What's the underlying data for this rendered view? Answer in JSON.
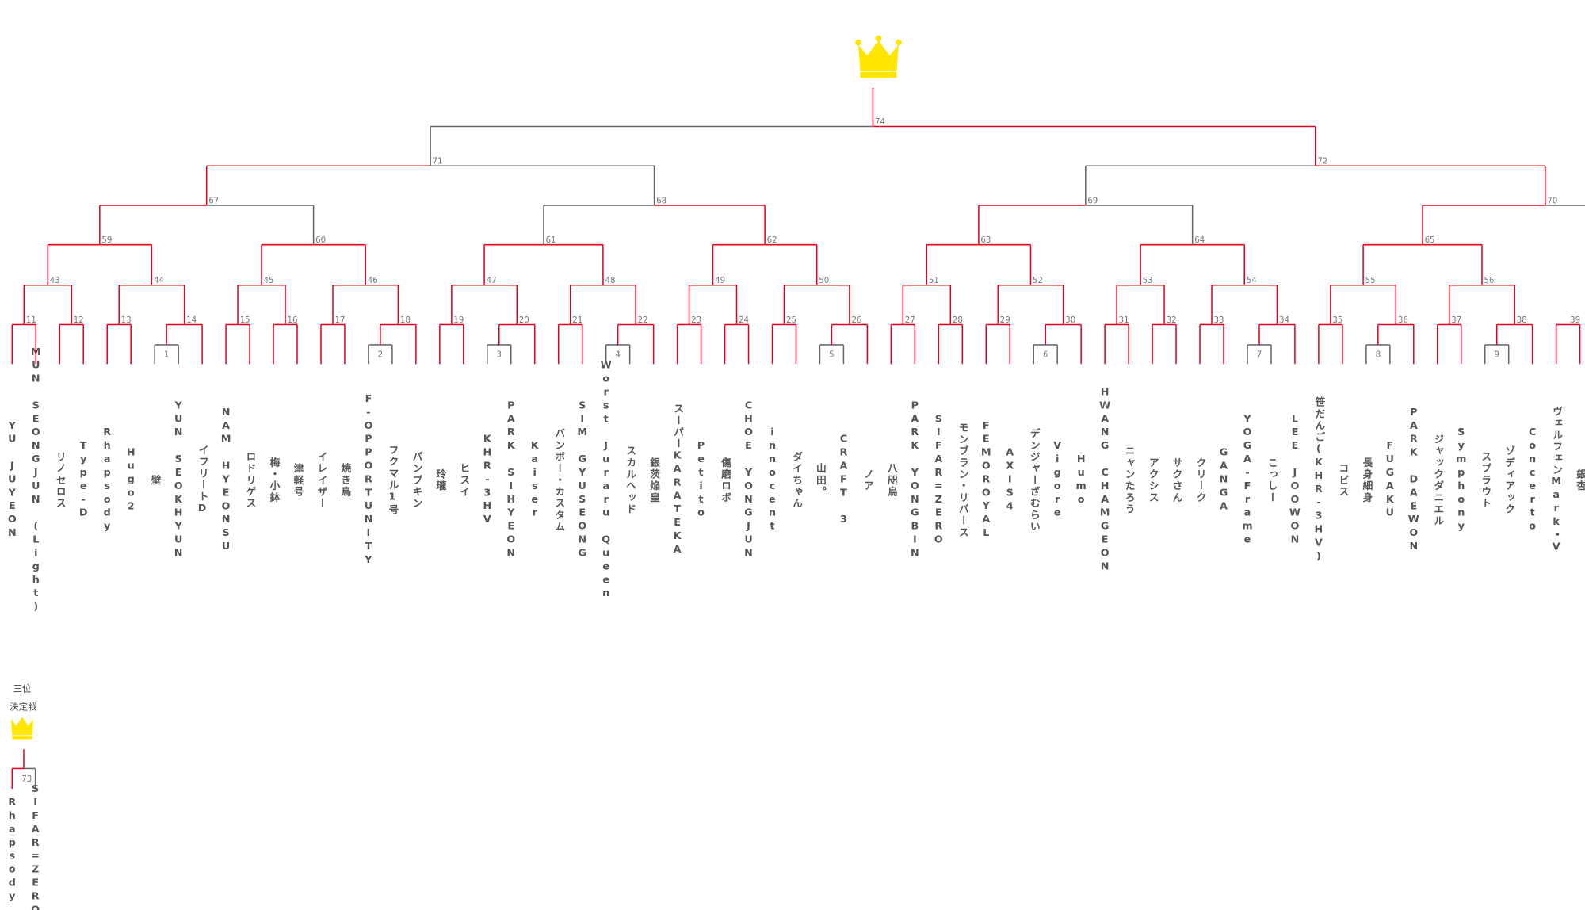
{
  "bracket": {
    "players": [
      "YU JUYEON",
      "MUN SEONGJUN (Light)",
      "リノセロス",
      "Type-D",
      "Rhapsody",
      "Hugo2",
      "壁",
      "YUN SEOKHYUN",
      "イフリートD",
      "NAM HYEONSU",
      "ロドリゲス",
      "梅・小鉢",
      "津軽号",
      "イレイザー",
      "焼き鳥",
      "F-OPPORTUNITY",
      "フクマル1号",
      "パンプキン",
      "玲瓏",
      "ヒスイ",
      "KHR-3HV",
      "PARK SIHYEON",
      "Kaiser",
      "バンボー・カスタム",
      "SIM GYUSEONG",
      "Worst Juraru Queen",
      "スカルヘッド",
      "銀茨焔皇",
      "スーパーKARATEKA",
      "Petito",
      "傷磨ロボ",
      "CHOE YONGJUN",
      "innocent",
      "ダイちゃん",
      "山田。",
      "CRAFT 3",
      "ノア",
      "八咫烏",
      "PARK YONGBIN",
      "SIFAR=ZERO",
      "モンブラン・リバース",
      "FEMOROYAL",
      "AXIS4",
      "デンジャーざむらい",
      "Vigore",
      "Humo",
      "HWANG CHAMGEON",
      "ニャンたろう",
      "アクシス",
      "サクさん",
      "クリーク",
      "GANGA",
      "YOGA-Frame",
      "こっしー",
      "LEE JOOWON",
      "笹だんご(KHR-3HV)",
      "コビス",
      "長身細身",
      "FUGAKU",
      "PARK DAEWON",
      "ジャックダニエル",
      "Symphony",
      "スプラウト",
      "ゾディアック",
      "Concerto",
      "ヴェルフェンMark・V",
      "銀杏"
    ],
    "matches": [
      1,
      2,
      3,
      4,
      5,
      6,
      7,
      8,
      9,
      11,
      12,
      13,
      14,
      15,
      16,
      17,
      18,
      19,
      20,
      21,
      22,
      23,
      24,
      25,
      26,
      27,
      28,
      29,
      30,
      31,
      32,
      33,
      34,
      35,
      36,
      37,
      38,
      39,
      43,
      44,
      45,
      46,
      47,
      48,
      49,
      50,
      51,
      52,
      53,
      54,
      55,
      56,
      59,
      60,
      61,
      62,
      63,
      64,
      65,
      67,
      68,
      69,
      70,
      71,
      72,
      74
    ],
    "third_place": {
      "title_line1": "三位",
      "title_line2": "決定戦",
      "match": 73,
      "players": [
        "Rhapsody",
        "SIFAR=ZERO"
      ]
    }
  }
}
